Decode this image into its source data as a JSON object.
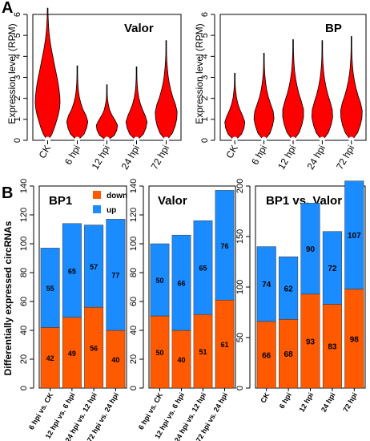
{
  "figure": {
    "panel_a_letter": "A",
    "panel_b_letter": "B",
    "violin_ylabel": "Expression level (RPM)",
    "bar_ylabel": "Differentially expressed circRNAs"
  },
  "colors": {
    "violin_fill": "#ff0000",
    "down": "#ff5a00",
    "up": "#1a8cff"
  },
  "chart_data": [
    {
      "type": "violin",
      "title": "Valor",
      "ylabel": "Expression level (RPM)",
      "ylim": [
        0,
        6
      ],
      "yticks": [
        0,
        1,
        2,
        3,
        4,
        5,
        6
      ],
      "categories": [
        "CK",
        "6 hpi",
        "12 hpi",
        "24 hpi",
        "72 hpi"
      ],
      "max": [
        6.3,
        3.55,
        2.65,
        3.5,
        4.75
      ],
      "widths": [
        [
          0.04,
          0.35,
          0.55,
          0.7,
          0.85,
          0.95,
          1.0,
          0.98,
          0.92,
          0.85,
          0.75,
          0.65,
          0.55,
          0.45,
          0.35,
          0.26,
          0.18,
          0.12,
          0.08,
          0.05,
          0.03,
          0.01
        ],
        [
          0.04,
          0.55,
          0.75,
          0.85,
          0.7,
          0.45,
          0.28,
          0.16,
          0.09,
          0.05,
          0.03,
          0.02,
          0.01
        ],
        [
          0.04,
          0.6,
          0.8,
          0.85,
          0.65,
          0.4,
          0.22,
          0.12,
          0.06,
          0.03,
          0.015,
          0.01
        ],
        [
          0.04,
          0.55,
          0.75,
          0.85,
          0.7,
          0.48,
          0.3,
          0.18,
          0.1,
          0.06,
          0.03,
          0.015,
          0.01
        ],
        [
          0.04,
          0.5,
          0.72,
          0.85,
          0.88,
          0.75,
          0.55,
          0.38,
          0.25,
          0.16,
          0.1,
          0.06,
          0.035,
          0.02,
          0.01
        ]
      ]
    },
    {
      "type": "violin",
      "title": "BP",
      "ylabel": "Expression level (RPM)",
      "ylim": [
        0,
        6
      ],
      "yticks": [
        0,
        1,
        2,
        3,
        4,
        5,
        6
      ],
      "categories": [
        "CK",
        "6 hpi",
        "12 hpi",
        "24 hpi",
        "72 hpi"
      ],
      "max": [
        3.2,
        4.15,
        4.8,
        4.75,
        4.95
      ],
      "widths": [
        [
          0.04,
          0.55,
          0.75,
          0.82,
          0.65,
          0.42,
          0.25,
          0.14,
          0.08,
          0.04,
          0.02,
          0.01
        ],
        [
          0.04,
          0.5,
          0.7,
          0.82,
          0.75,
          0.55,
          0.35,
          0.22,
          0.13,
          0.07,
          0.04,
          0.02,
          0.01
        ],
        [
          0.04,
          0.5,
          0.72,
          0.85,
          0.85,
          0.68,
          0.48,
          0.32,
          0.2,
          0.12,
          0.07,
          0.04,
          0.02,
          0.01
        ],
        [
          0.04,
          0.5,
          0.72,
          0.85,
          0.82,
          0.65,
          0.45,
          0.3,
          0.18,
          0.11,
          0.06,
          0.035,
          0.02,
          0.01
        ],
        [
          0.04,
          0.5,
          0.72,
          0.86,
          0.88,
          0.75,
          0.55,
          0.38,
          0.25,
          0.15,
          0.09,
          0.05,
          0.03,
          0.015,
          0.01
        ]
      ]
    },
    {
      "type": "bar",
      "stacked": true,
      "title": "BP1",
      "ylabel": "Differentially expressed circRNAs",
      "ylim": [
        0,
        140
      ],
      "yticks": [
        0,
        20,
        40,
        60,
        80,
        100,
        120,
        140
      ],
      "categories": [
        "6 hpi vs. CK",
        "12 hpi vs. 6 hpi",
        "24 hpi vs. 12 hpi",
        "72 hpi vs. 24 hpi"
      ],
      "series": [
        {
          "name": "down",
          "values": [
            42,
            49,
            56,
            40
          ]
        },
        {
          "name": "up",
          "values": [
            55,
            65,
            57,
            77
          ]
        }
      ],
      "legend": "top-right"
    },
    {
      "type": "bar",
      "stacked": true,
      "title": "Valor",
      "ylim": [
        0,
        140
      ],
      "yticks": [
        0,
        20,
        40,
        60,
        80,
        100,
        120,
        140
      ],
      "categories": [
        "6 hpi vs. CK",
        "12 hpi vs. 6 hpi",
        "24 hpi vs. 12 hpi",
        "72 hpi vs. 24 hpi"
      ],
      "series": [
        {
          "name": "down",
          "values": [
            50,
            40,
            51,
            61
          ]
        },
        {
          "name": "up",
          "values": [
            50,
            66,
            65,
            76
          ]
        }
      ]
    },
    {
      "type": "bar",
      "stacked": true,
      "title": "BP1 vs. Valor",
      "ylim": [
        0,
        200
      ],
      "yticks": [
        0,
        50,
        100,
        150,
        200
      ],
      "categories": [
        "CK",
        "6 hpi",
        "12 hpi",
        "24 hpi",
        "72 hpi"
      ],
      "series": [
        {
          "name": "down",
          "values": [
            66,
            68,
            93,
            83,
            98
          ]
        },
        {
          "name": "up",
          "values": [
            74,
            62,
            90,
            72,
            107
          ]
        }
      ]
    }
  ]
}
